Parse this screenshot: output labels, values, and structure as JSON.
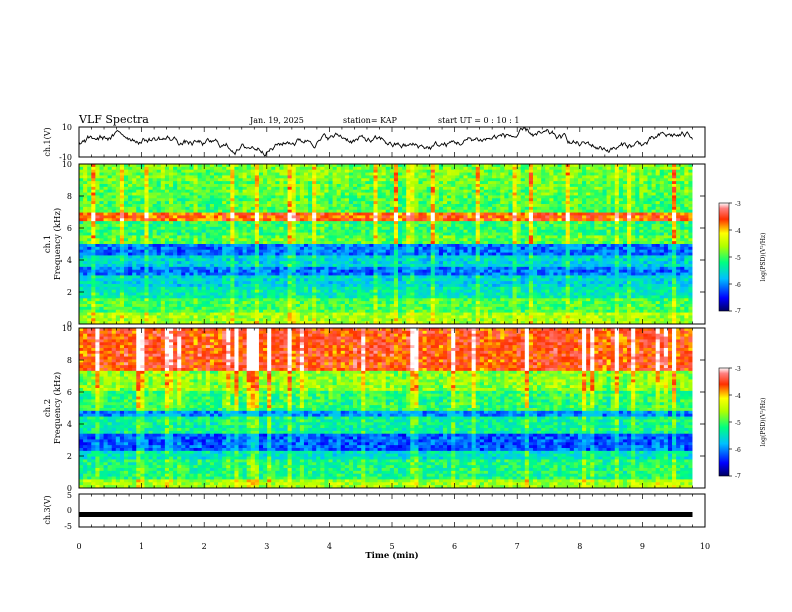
{
  "header": {
    "title": "VLF Spectra",
    "date": "Jan. 19, 2025",
    "station": "station= KAP",
    "start": "start  UT =  0 : 10 : 1"
  },
  "chart_data": [
    {
      "id": "ch1-waveform",
      "type": "line",
      "ylabel": "ch.1(V)",
      "ylim": [
        -10,
        10
      ],
      "yticks": [
        "10",
        "-10"
      ],
      "xlim": [
        0,
        10
      ],
      "series_description": "noisy voltage trace spanning roughly -10 to 10 V over 0–9.8 min"
    },
    {
      "id": "ch1-spectrogram",
      "type": "heatmap",
      "ylabel_line1": "ch.1",
      "ylabel_line2": "Frequency (kHz)",
      "ylim": [
        0,
        10
      ],
      "yticks": [
        "0",
        "2",
        "4",
        "6",
        "8",
        "10"
      ],
      "xlim": [
        0,
        9.8
      ],
      "bands": [
        {
          "from": 0.0,
          "to": 0.7,
          "level": -4.6
        },
        {
          "from": 0.7,
          "to": 1.6,
          "level": -5.0
        },
        {
          "from": 1.6,
          "to": 2.4,
          "level": -5.4
        },
        {
          "from": 2.4,
          "to": 3.0,
          "level": -5.6
        },
        {
          "from": 3.0,
          "to": 3.6,
          "level": -6.1
        },
        {
          "from": 3.6,
          "to": 4.2,
          "level": -5.6
        },
        {
          "from": 4.2,
          "to": 5.0,
          "level": -6.1
        },
        {
          "from": 5.0,
          "to": 5.6,
          "level": -4.9
        },
        {
          "from": 5.6,
          "to": 6.4,
          "level": -5.1
        },
        {
          "from": 6.4,
          "to": 6.9,
          "level": -3.7
        },
        {
          "from": 6.9,
          "to": 8.0,
          "level": -5.0
        },
        {
          "from": 8.0,
          "to": 9.0,
          "level": -4.9
        },
        {
          "from": 9.0,
          "to": 10.0,
          "level": -4.8
        }
      ],
      "colorbar": {
        "label": "log(PSD)(V²/Hz)",
        "range": [
          -7,
          -3
        ],
        "ticks": [
          "-3",
          "-4",
          "-5",
          "-6",
          "-7"
        ]
      }
    },
    {
      "id": "ch2-spectrogram",
      "type": "heatmap",
      "ylabel_line1": "ch.2",
      "ylabel_line2": "Frequency (kHz)",
      "ylim": [
        0,
        10
      ],
      "yticks": [
        "0",
        "2",
        "4",
        "6",
        "8",
        "10"
      ],
      "xlim": [
        0,
        9.8
      ],
      "bands": [
        {
          "from": 0.0,
          "to": 0.6,
          "level": -4.6
        },
        {
          "from": 0.6,
          "to": 1.8,
          "level": -5.2
        },
        {
          "from": 1.8,
          "to": 2.4,
          "level": -5.5
        },
        {
          "from": 2.4,
          "to": 3.4,
          "level": -6.2
        },
        {
          "from": 3.4,
          "to": 4.4,
          "level": -5.3
        },
        {
          "from": 4.4,
          "to": 4.9,
          "level": -6.0
        },
        {
          "from": 4.9,
          "to": 6.0,
          "level": -5.1
        },
        {
          "from": 6.0,
          "to": 7.4,
          "level": -4.7
        },
        {
          "from": 7.4,
          "to": 10.0,
          "level": -3.6
        }
      ],
      "colorbar": {
        "label": "log(PSD)(V²/Hz)",
        "range": [
          -7,
          -3
        ],
        "ticks": [
          "-3",
          "-4",
          "-5",
          "-6",
          "-7"
        ]
      }
    },
    {
      "id": "ch3-waveform",
      "type": "line",
      "ylabel": "ch.3(V)",
      "ylim": [
        -5,
        5
      ],
      "yticks": [
        "5",
        "0",
        "-5"
      ],
      "xlim": [
        0,
        10
      ],
      "constant_value": -1.2
    }
  ],
  "xaxis": {
    "label": "Time (min)",
    "ticks": [
      "0",
      "1",
      "2",
      "3",
      "4",
      "5",
      "6",
      "7",
      "8",
      "9",
      "10"
    ]
  }
}
